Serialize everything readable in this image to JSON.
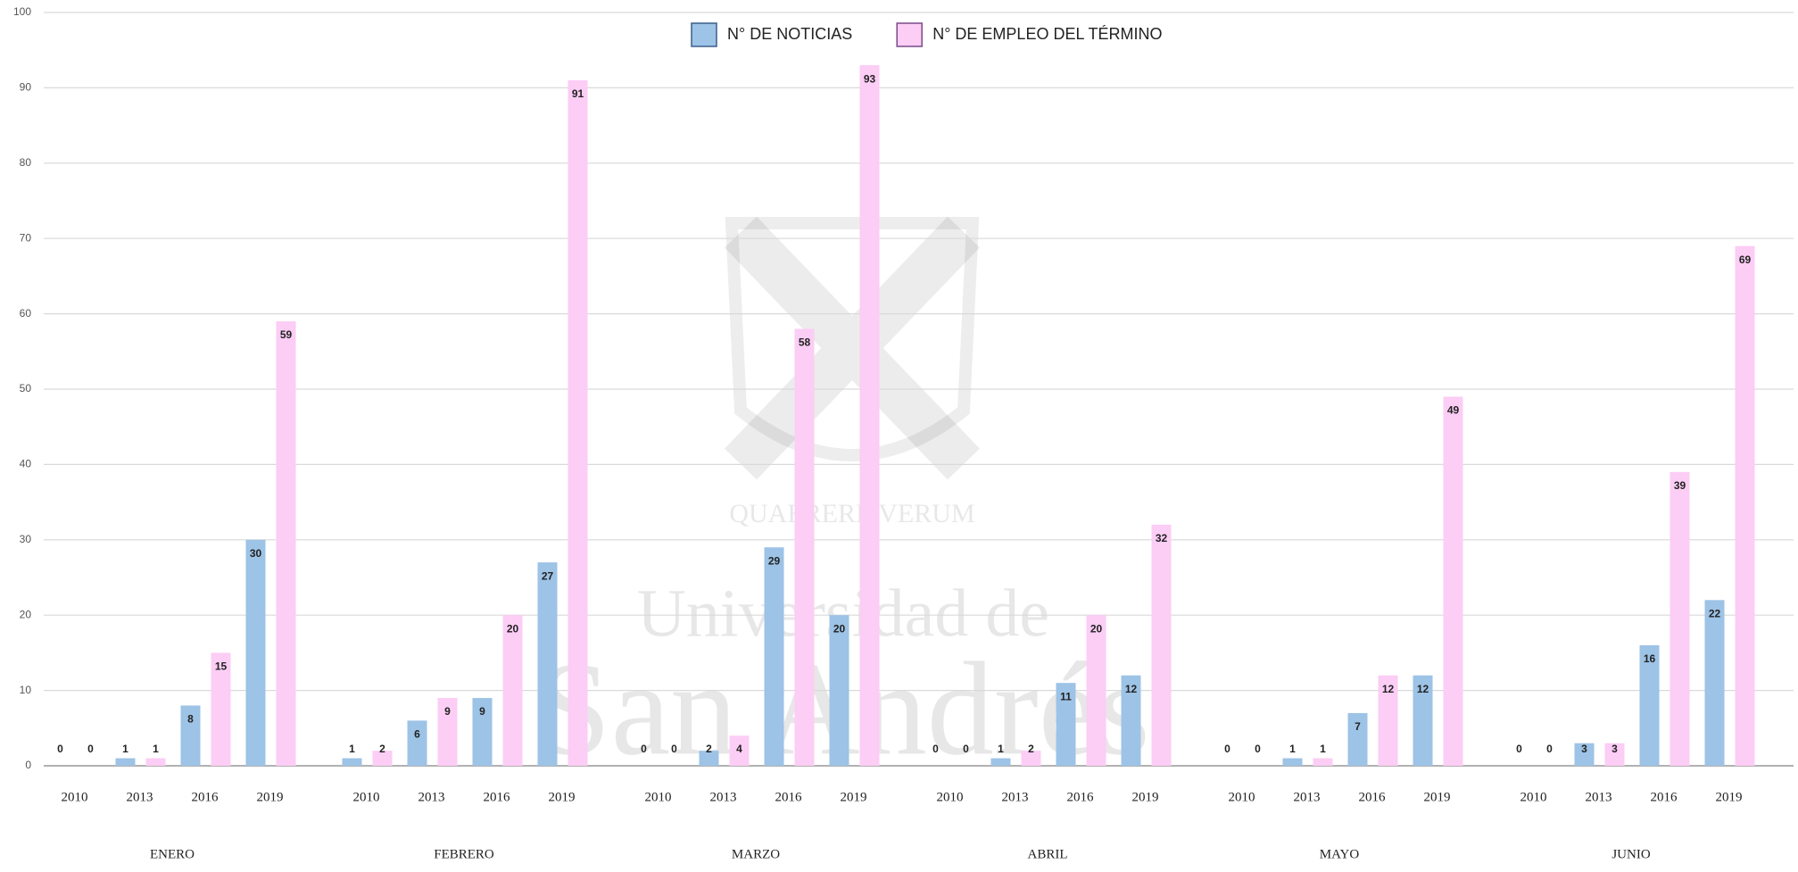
{
  "chart_data": {
    "type": "bar",
    "watermark": [
      "QUAERERE VERUM",
      "Universidad de",
      "San Andrés"
    ],
    "groups": [
      "ENERO",
      "FEBRERO",
      "MARZO",
      "ABRIL",
      "MAYO",
      "JUNIO"
    ],
    "categories": [
      "2010",
      "2013",
      "2016",
      "2019",
      "2010",
      "2013",
      "2016",
      "2019",
      "2010",
      "2013",
      "2016",
      "2019",
      "2010",
      "2013",
      "2016",
      "2019",
      "2010",
      "2013",
      "2016",
      "2019",
      "2010",
      "2013",
      "2016",
      "2019"
    ],
    "series": [
      {
        "name": "N° DE NOTICIAS",
        "color": "#9dc3e6",
        "values": [
          0,
          1,
          8,
          30,
          1,
          6,
          9,
          27,
          0,
          2,
          29,
          20,
          0,
          1,
          11,
          12,
          0,
          1,
          7,
          12,
          0,
          3,
          16,
          22
        ]
      },
      {
        "name": "N° DE EMPLEO DEL TÉRMINO",
        "color": "#fccdf5",
        "values": [
          0,
          1,
          15,
          59,
          2,
          9,
          20,
          91,
          0,
          4,
          58,
          93,
          0,
          2,
          20,
          32,
          0,
          1,
          12,
          49,
          0,
          3,
          39,
          69
        ]
      }
    ],
    "ylim": [
      0,
      100
    ],
    "yticks": [
      0,
      10,
      20,
      30,
      40,
      50,
      60,
      70,
      80,
      90,
      100
    ],
    "grid": true,
    "legend": "top"
  }
}
